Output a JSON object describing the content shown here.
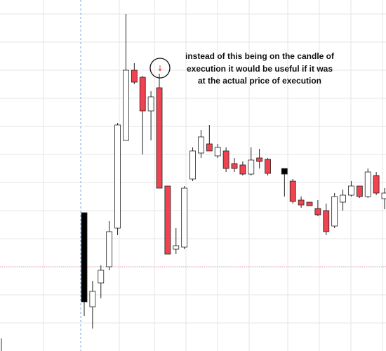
{
  "chart_data": {
    "type": "candlestick",
    "annotation": [
      "instead of  this being on the candle of",
      "execution it would be useful if it was",
      "at the actual price of execution"
    ],
    "categories": [
      null,
      null,
      null,
      null,
      null,
      null,
      null,
      null,
      null,
      null,
      null,
      null,
      null,
      null,
      null,
      null,
      null,
      null,
      null,
      null,
      null,
      null,
      null,
      null,
      null,
      null,
      null,
      null,
      null,
      null,
      null,
      null,
      null,
      null,
      null,
      null,
      null
    ],
    "open": [
      70,
      63,
      97,
      120,
      175,
      300,
      400,
      390,
      342,
      375,
      235,
      145,
      148,
      245,
      282,
      295,
      278,
      285,
      267,
      265,
      252,
      275,
      273,
      null,
      260,
      242,
      215,
      212,
      203,
      200,
      178,
      212,
      222,
      235,
      220,
      250,
      217
    ],
    "high": [
      197,
      100,
      122,
      185,
      325,
      480,
      410,
      392,
      370,
      395,
      235,
      175,
      235,
      290,
      315,
      322,
      295,
      290,
      275,
      270,
      290,
      288,
      275,
      null,
      260,
      245,
      220,
      212,
      215,
      210,
      225,
      230,
      242,
      235,
      260,
      255,
      232
    ],
    "low": [
      50,
      32,
      75,
      115,
      165,
      300,
      380,
      280,
      300,
      232,
      138,
      138,
      145,
      242,
      275,
      285,
      275,
      255,
      255,
      250,
      250,
      260,
      250,
      null,
      220,
      210,
      204,
      207,
      192,
      165,
      175,
      200,
      220,
      218,
      218,
      222,
      202
    ],
    "close": [
      197,
      85,
      115,
      170,
      322,
      400,
      383,
      342,
      362,
      232,
      138,
      150,
      232,
      285,
      305,
      285,
      290,
      260,
      260,
      252,
      272,
      270,
      253,
      null,
      252,
      213,
      208,
      207,
      194,
      170,
      220,
      222,
      235,
      220,
      255,
      225,
      225
    ],
    "colors": [
      "#000000",
      "#ffffff",
      "#ffffff",
      "#ffffff",
      "#ffffff",
      "#ffffff",
      "#f0424f",
      "#f0424f",
      "#ffffff",
      "#f0424f",
      "#f0424f",
      "#ffffff",
      "#ffffff",
      "#ffffff",
      "#ffffff",
      "#f0424f",
      "#ffffff",
      "#f0424f",
      "#f0424f",
      "#f0424f",
      "#ffffff",
      "#f0424f",
      "#f0424f",
      null,
      "#000000",
      "#f0424f",
      "#f0424f",
      "#f0424f",
      "#f0424f",
      "#f0424f",
      "#ffffff",
      "#ffffff",
      "#ffffff",
      "#f0424f",
      "#ffffff",
      "#f0424f",
      "#ffffff"
    ],
    "ylim": [
      0,
      500
    ],
    "grid": true
  }
}
